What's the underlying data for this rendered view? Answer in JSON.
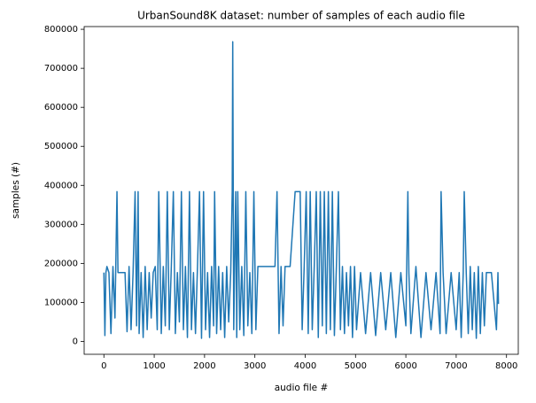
{
  "chart_data": {
    "type": "line",
    "title": "UrbanSound8K dataset: number of samples of each audio file",
    "xlabel": "audio file #",
    "ylabel": "samples (#)",
    "color": "#1f77b4",
    "xlim": [
      -392,
      8234
    ],
    "ylim": [
      -33000,
      807000
    ],
    "xticks": [
      0,
      1000,
      2000,
      3000,
      4000,
      5000,
      6000,
      7000,
      8000
    ],
    "yticks": [
      0,
      100000,
      200000,
      300000,
      400000,
      500000,
      600000,
      700000,
      800000
    ],
    "x": [
      0,
      20,
      40,
      60,
      100,
      140,
      180,
      220,
      260,
      280,
      300,
      340,
      380,
      420,
      460,
      500,
      540,
      580,
      620,
      650,
      680,
      700,
      740,
      780,
      820,
      860,
      900,
      940,
      980,
      1020,
      1060,
      1090,
      1110,
      1140,
      1180,
      1220,
      1260,
      1300,
      1340,
      1380,
      1420,
      1460,
      1500,
      1540,
      1580,
      1620,
      1660,
      1700,
      1740,
      1780,
      1820,
      1860,
      1900,
      1940,
      1980,
      2020,
      2060,
      2100,
      2140,
      2180,
      2200,
      2240,
      2280,
      2320,
      2360,
      2400,
      2440,
      2480,
      2520,
      2550,
      2560,
      2580,
      2620,
      2640,
      2660,
      2700,
      2740,
      2780,
      2820,
      2860,
      2900,
      2940,
      2980,
      3020,
      3060,
      3100,
      3400,
      3440,
      3480,
      3520,
      3560,
      3600,
      3700,
      3800,
      3820,
      3900,
      3940,
      3980,
      4020,
      4060,
      4100,
      4140,
      4180,
      4220,
      4260,
      4300,
      4340,
      4380,
      4420,
      4460,
      4500,
      4540,
      4580,
      4620,
      4660,
      4700,
      4740,
      4780,
      4820,
      4860,
      4900,
      4940,
      4980,
      5020,
      5100,
      5200,
      5300,
      5400,
      5500,
      5600,
      5700,
      5800,
      5900,
      6000,
      6040,
      6060,
      6100,
      6200,
      6300,
      6400,
      6500,
      6600,
      6680,
      6700,
      6740,
      6800,
      6900,
      7000,
      7060,
      7100,
      7140,
      7160,
      7200,
      7240,
      7280,
      7320,
      7360,
      7400,
      7440,
      7480,
      7520,
      7560,
      7600,
      7700,
      7800,
      7830,
      7840
    ],
    "values": [
      176400,
      15000,
      176400,
      192000,
      176400,
      20000,
      192000,
      60000,
      384000,
      176400,
      176400,
      176400,
      176400,
      176400,
      25000,
      192000,
      30000,
      176400,
      384000,
      40000,
      384000,
      20000,
      176400,
      10000,
      192000,
      30000,
      176400,
      60000,
      176400,
      192000,
      30000,
      384000,
      250000,
      20000,
      192000,
      40000,
      384000,
      30000,
      192000,
      384000,
      20000,
      176400,
      50000,
      384000,
      30000,
      192000,
      10000,
      384000,
      30000,
      176400,
      20000,
      192000,
      384000,
      8000,
      384000,
      30000,
      176400,
      10000,
      192000,
      40000,
      384000,
      20000,
      192000,
      30000,
      176400,
      10000,
      192000,
      50000,
      176400,
      384000,
      768000,
      30000,
      384000,
      10000,
      384000,
      30000,
      192000,
      15000,
      384000,
      40000,
      176400,
      20000,
      384000,
      30000,
      192000,
      192000,
      192000,
      384000,
      20000,
      192000,
      40000,
      192000,
      192000,
      384000,
      384000,
      384000,
      30000,
      192000,
      384000,
      20000,
      384000,
      30000,
      192000,
      384000,
      10000,
      384000,
      40000,
      384000,
      20000,
      384000,
      30000,
      384000,
      15000,
      192000,
      384000,
      30000,
      192000,
      20000,
      176400,
      40000,
      192000,
      10000,
      192000,
      30000,
      176400,
      20000,
      176400,
      15000,
      176400,
      30000,
      176400,
      10000,
      176400,
      40000,
      384000,
      176400,
      20000,
      192000,
      10000,
      176400,
      30000,
      176400,
      20000,
      384000,
      176400,
      20000,
      176400,
      30000,
      176400,
      10000,
      176400,
      384000,
      176400,
      20000,
      192000,
      30000,
      176400,
      8000,
      192000,
      20000,
      176400,
      40000,
      176400,
      176400,
      30000,
      176400,
      96000
    ]
  }
}
